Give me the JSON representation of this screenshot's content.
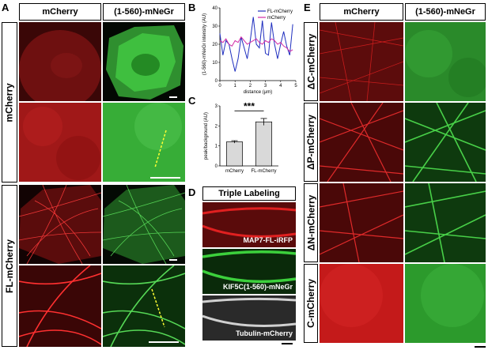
{
  "panels": {
    "A": {
      "label": "A",
      "col_headers": [
        "mCherry",
        "(1-560)-mNeGr"
      ],
      "row_headers": [
        "mCherry",
        "FL-mCherry"
      ]
    },
    "B": {
      "label": "B"
    },
    "C": {
      "label": "C",
      "significance": "***"
    },
    "D": {
      "label": "D",
      "header": "Triple Labeling",
      "image_labels": [
        "MAP7-FL-iRFP",
        "KIF5C(1-560)-mNeGr",
        "Tubulin-mCherry"
      ]
    },
    "E": {
      "label": "E",
      "col_headers": [
        "mCherry",
        "(1-560)-mNeGr"
      ],
      "row_headers": [
        "ΔC-mCherry",
        "ΔP-mCherry",
        "ΔN-mCherry",
        "C-mCherry"
      ]
    }
  },
  "colors": {
    "red": "#d81e1e",
    "green": "#3cc43c",
    "line_fl": "#1f2fbf",
    "line_mcherry": "#d22ca6",
    "bar": "#d9d9d9"
  },
  "chart_data": [
    {
      "type": "line",
      "panel": "B",
      "xlabel": "distance (μm)",
      "ylabel": "(1-560)-mNeGr intensity (AU)",
      "xlim": [
        0,
        5
      ],
      "ylim": [
        0,
        40
      ],
      "xticks": [
        0,
        1,
        2,
        3,
        4,
        5
      ],
      "yticks": [
        0,
        10,
        20,
        30,
        40
      ],
      "legend_position": "top-right",
      "series": [
        {
          "name": "FL-mCherry",
          "color": "#1f2fbf",
          "x": [
            0.0,
            0.2,
            0.4,
            0.6,
            0.8,
            1.0,
            1.2,
            1.4,
            1.6,
            1.8,
            2.0,
            2.2,
            2.4,
            2.6,
            2.8,
            3.0,
            3.2,
            3.4,
            3.6,
            3.8,
            4.0,
            4.2,
            4.4,
            4.6,
            4.8
          ],
          "y": [
            26,
            14,
            22,
            20,
            12,
            5,
            12,
            24,
            18,
            12,
            22,
            35,
            20,
            18,
            33,
            15,
            14,
            32,
            20,
            12,
            20,
            27,
            19,
            14,
            31
          ]
        },
        {
          "name": "mCherry",
          "color": "#d22ca6",
          "x": [
            0.0,
            0.2,
            0.4,
            0.6,
            0.8,
            1.0,
            1.2,
            1.4,
            1.6,
            1.8,
            2.0,
            2.2,
            2.4,
            2.6,
            2.8,
            3.0,
            3.2,
            3.4,
            3.6,
            3.8,
            4.0,
            4.2,
            4.4,
            4.6,
            4.8
          ],
          "y": [
            22,
            21,
            23,
            20,
            19,
            22,
            21,
            24,
            22,
            20,
            21,
            22,
            23,
            21,
            20,
            22,
            21,
            23,
            22,
            20,
            21,
            19,
            18,
            16,
            17
          ]
        }
      ]
    },
    {
      "type": "bar",
      "panel": "C",
      "ylabel": "peak/background (AU)",
      "categories": [
        "mCherry",
        "FL-mCherry"
      ],
      "values": [
        1.2,
        2.2
      ],
      "errors": [
        0.06,
        0.17
      ],
      "ylim": [
        0,
        3
      ],
      "yticks": [
        0,
        1,
        2,
        3
      ],
      "annotation": "***"
    }
  ]
}
